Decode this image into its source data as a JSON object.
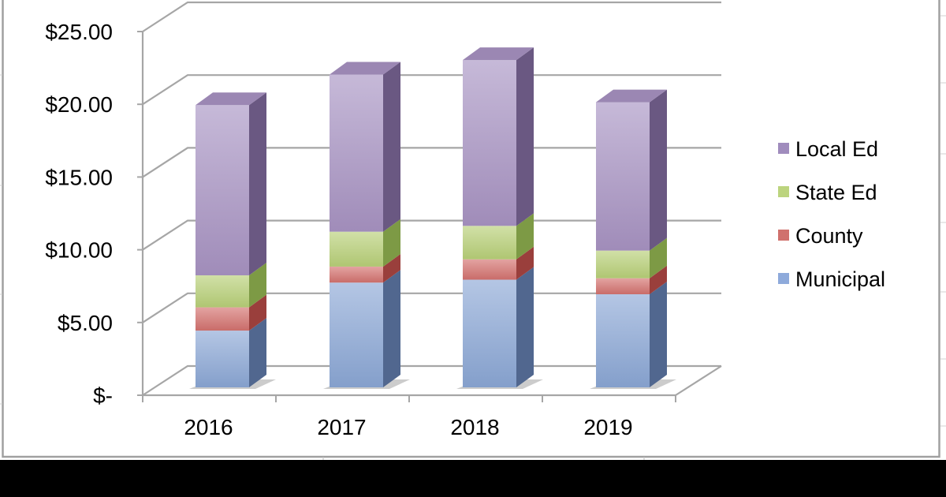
{
  "chart_data": {
    "type": "bar",
    "subtype": "stacked-3d-column",
    "title": "",
    "xlabel": "",
    "ylabel": "",
    "categories": [
      "2016",
      "2017",
      "2018",
      "2019"
    ],
    "series": [
      {
        "name": "Municipal",
        "values": [
          3.9,
          7.2,
          7.4,
          6.4
        ],
        "color": "#8ba7d6",
        "side_color": "#51678f"
      },
      {
        "name": "County",
        "values": [
          1.6,
          1.1,
          1.4,
          1.1
        ],
        "color": "#d4726e",
        "side_color": "#9a3f3c"
      },
      {
        "name": "State Ed",
        "values": [
          2.2,
          2.4,
          2.3,
          1.9
        ],
        "color": "#b8d078",
        "side_color": "#7d9a45"
      },
      {
        "name": "Local Ed",
        "values": [
          11.7,
          10.8,
          11.4,
          10.2
        ],
        "color": "#a893c3",
        "side_color": "#6a5882"
      }
    ],
    "totals": [
      19.4,
      21.5,
      22.5,
      19.6
    ],
    "ylim": [
      0,
      25
    ],
    "yticks": [
      0,
      5,
      10,
      15,
      20,
      25
    ],
    "ytick_labels": [
      "$-",
      "$5.00",
      "$10.00",
      "$15.00",
      "$20.00",
      "$25.00"
    ],
    "grid": true,
    "legend_position": "right",
    "legend_order": [
      "Local Ed",
      "State Ed",
      "County",
      "Municipal"
    ]
  },
  "legend": {
    "items": [
      {
        "label": "Local Ed",
        "color": "#a08cbd"
      },
      {
        "label": "State Ed",
        "color": "#bcd47e"
      },
      {
        "label": "County",
        "color": "#d0716d"
      },
      {
        "label": "Municipal",
        "color": "#8eaadb"
      }
    ]
  },
  "colors": {
    "gridline": "#a6a6a6",
    "frame": "#a0a0a0",
    "background": "#ffffff"
  }
}
